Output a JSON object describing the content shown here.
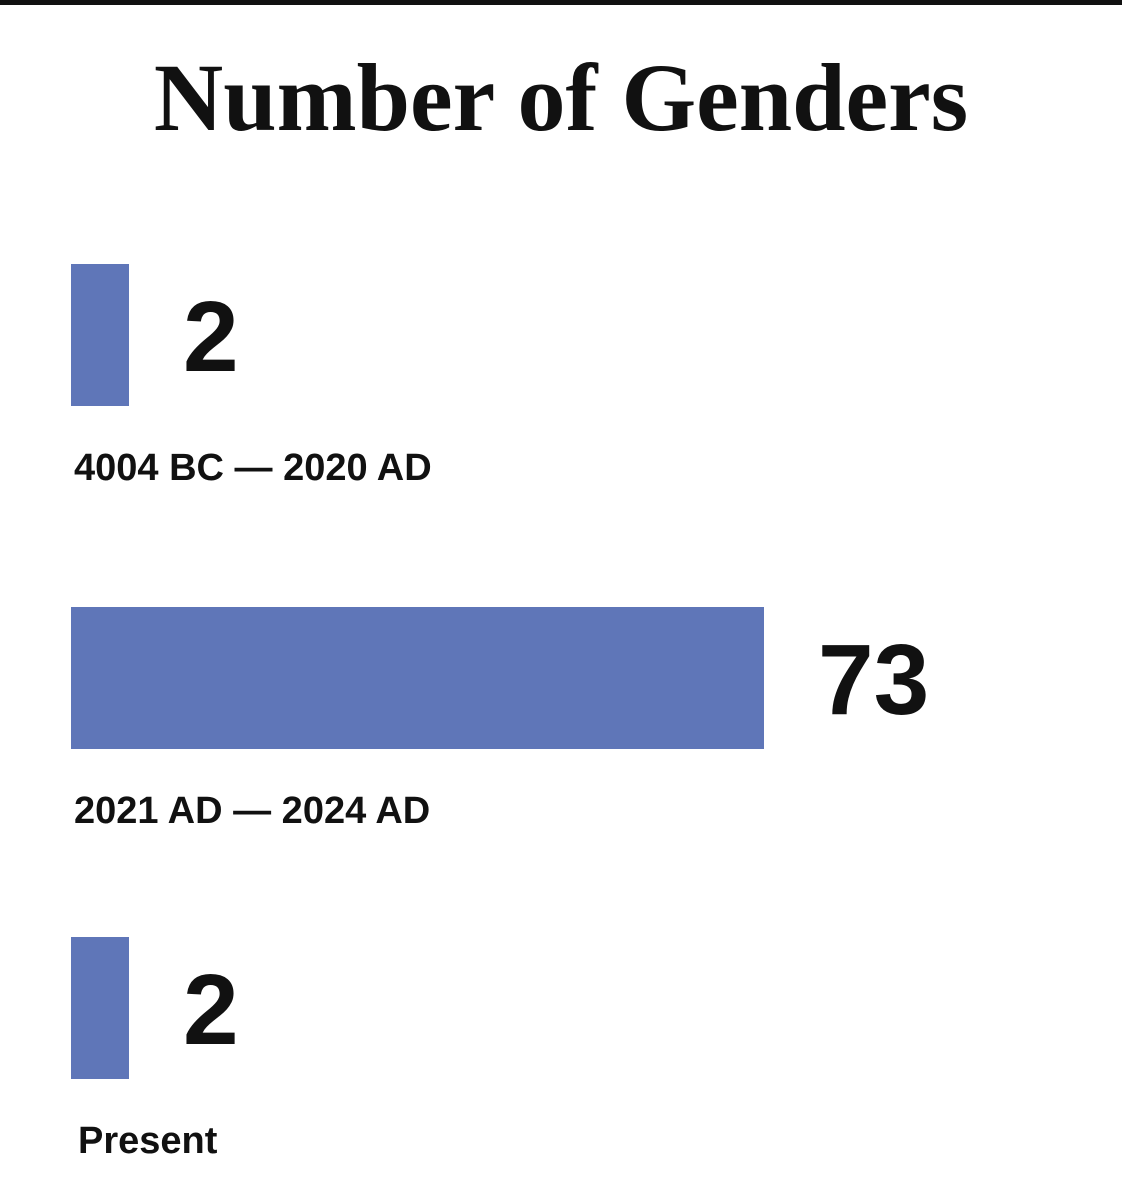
{
  "chart_data": {
    "type": "bar",
    "orientation": "horizontal",
    "title": "Number of Genders",
    "categories": [
      "4004 BC — 2020 AD",
      "2021 AD — 2024 AD",
      "Present"
    ],
    "values": [
      2,
      73,
      2
    ],
    "data_labels": [
      "2",
      "73",
      "2"
    ],
    "xlabel": "",
    "ylabel": "",
    "grid": false,
    "bar_color": "#5f76b8",
    "text_color": "#111111"
  }
}
